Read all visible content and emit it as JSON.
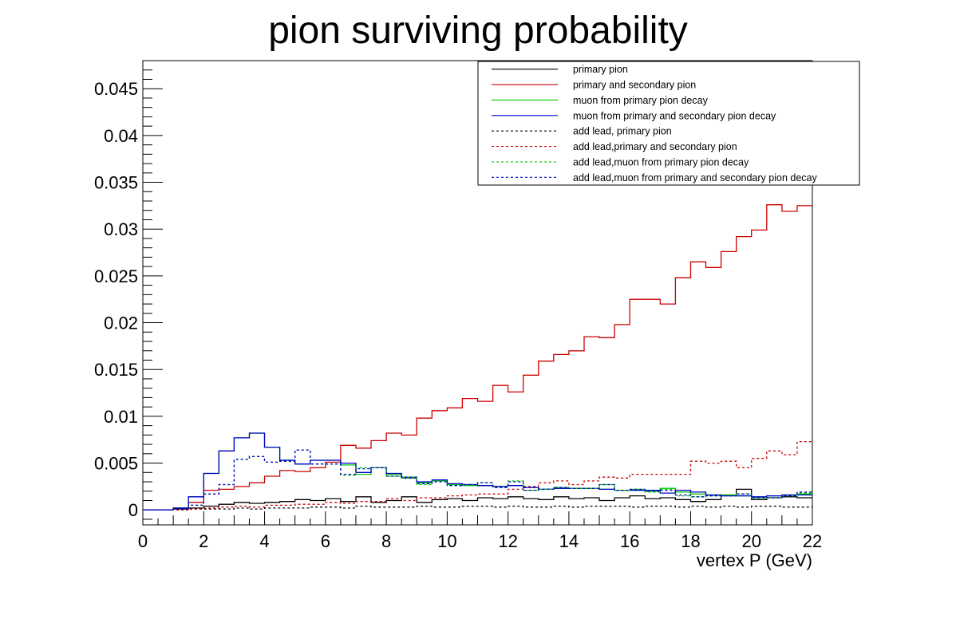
{
  "chart_data": {
    "type": "line",
    "title": "pion surviving probability",
    "xlabel": "vertex P (GeV)",
    "ylabel": "",
    "xlim": [
      0,
      22
    ],
    "ylim": [
      -0.0016,
      0.048
    ],
    "xticks": [
      "0",
      "2",
      "4",
      "6",
      "8",
      "10",
      "12",
      "14",
      "16",
      "18",
      "20",
      "22"
    ],
    "yticks": [
      "0",
      "0.005",
      "0.01",
      "0.015",
      "0.02",
      "0.025",
      "0.03",
      "0.035",
      "0.04",
      "0.045"
    ],
    "bin_edges": [
      0,
      0.5,
      1,
      1.5,
      2,
      2.5,
      3,
      3.5,
      4,
      4.5,
      5,
      5.5,
      6,
      6.5,
      7,
      7.5,
      8,
      8.5,
      9,
      9.5,
      10,
      10.5,
      11,
      11.5,
      12,
      12.5,
      13,
      13.5,
      14,
      14.5,
      15,
      15.5,
      16,
      16.5,
      17,
      17.5,
      18,
      18.5,
      19,
      19.5,
      20,
      20.5,
      21,
      21.5,
      22
    ],
    "grid": false,
    "legend_position": "top-right",
    "series": [
      {
        "name": "primary pion",
        "color": "#000000",
        "style": "solid",
        "values": [
          0,
          0,
          0.0001,
          0.0002,
          0.0004,
          0.0006,
          0.0008,
          0.0007,
          0.0008,
          0.0009,
          0.0011,
          0.001,
          0.0012,
          0.0009,
          0.0014,
          0.0008,
          0.001,
          0.0014,
          0.0008,
          0.0011,
          0.0012,
          0.001,
          0.0013,
          0.0012,
          0.0014,
          0.0012,
          0.0011,
          0.0014,
          0.0012,
          0.0013,
          0.001,
          0.0013,
          0.0015,
          0.0012,
          0.0013,
          0.0011,
          0.0009,
          0.0011,
          0.0016,
          0.0022,
          0.0011,
          0.0013,
          0.0014,
          0.0013
        ]
      },
      {
        "name": "primary and secondary pion",
        "color": "#cc0000",
        "style": "solid",
        "values": [
          0,
          0,
          0.0002,
          0.0008,
          0.0021,
          0.0022,
          0.0025,
          0.0029,
          0.0036,
          0.0042,
          0.0041,
          0.0045,
          0.0051,
          0.0069,
          0.0066,
          0.0074,
          0.0082,
          0.008,
          0.0098,
          0.0106,
          0.0109,
          0.0119,
          0.0116,
          0.0133,
          0.0126,
          0.0144,
          0.0159,
          0.0166,
          0.017,
          0.0185,
          0.0184,
          0.0198,
          0.0225,
          0.0225,
          0.022,
          0.0248,
          0.0265,
          0.0259,
          0.0276,
          0.0292,
          0.0299,
          0.0326,
          0.0319,
          0.0325
        ]
      },
      {
        "name": "muon from primary pion decay",
        "color": "#00cc00",
        "style": "solid",
        "values": [
          0,
          0,
          0.0002,
          0.0014,
          0.0039,
          0.0063,
          0.0077,
          0.0082,
          0.0067,
          0.0053,
          0.0049,
          0.0053,
          0.0053,
          0.0048,
          0.0038,
          0.0045,
          0.0038,
          0.0034,
          0.0029,
          0.0031,
          0.0027,
          0.0026,
          0.0026,
          0.0025,
          0.0026,
          0.0024,
          0.0022,
          0.0023,
          0.0023,
          0.0023,
          0.0022,
          0.0021,
          0.0021,
          0.002,
          0.0023,
          0.0019,
          0.0017,
          0.0016,
          0.0016,
          0.0015,
          0.0013,
          0.0015,
          0.0016,
          0.0017
        ]
      },
      {
        "name": "muon from primary and secondary pion decay",
        "color": "#0000cc",
        "style": "solid",
        "values": [
          0,
          0,
          0.0002,
          0.0014,
          0.0039,
          0.0063,
          0.0077,
          0.0082,
          0.0067,
          0.0053,
          0.0049,
          0.0053,
          0.0053,
          0.005,
          0.004,
          0.0045,
          0.0039,
          0.0035,
          0.003,
          0.0032,
          0.0028,
          0.0027,
          0.0026,
          0.0025,
          0.0026,
          0.0024,
          0.0022,
          0.0023,
          0.0023,
          0.0023,
          0.0022,
          0.0021,
          0.0021,
          0.0021,
          0.0018,
          0.0021,
          0.0019,
          0.0016,
          0.0015,
          0.0015,
          0.0014,
          0.0015,
          0.0016,
          0.0016
        ]
      },
      {
        "name": "add lead, primary pion",
        "color": "#000000",
        "style": "dashed",
        "values": [
          0,
          0,
          0,
          0.0001,
          0.0001,
          0.0001,
          0.0002,
          0.0001,
          0.0002,
          0.0002,
          0.0002,
          0.0003,
          0.0003,
          0.0002,
          0.0004,
          0.0003,
          0.0003,
          0.0003,
          0.0004,
          0.0003,
          0.0003,
          0.0004,
          0.0004,
          0.0003,
          0.0004,
          0.0003,
          0.0003,
          0.0004,
          0.0003,
          0.0004,
          0.0004,
          0.0004,
          0.0003,
          0.0004,
          0.0004,
          0.0003,
          0.0004,
          0.0003,
          0.0004,
          0.0003,
          0.0004,
          0.0004,
          0.0003,
          0.0003
        ]
      },
      {
        "name": "add lead,primary and secondary pion",
        "color": "#cc0000",
        "style": "dashed",
        "values": [
          0,
          0,
          0,
          0.0001,
          0.0002,
          0.0003,
          0.0004,
          0.0003,
          0.0005,
          0.0005,
          0.0006,
          0.0006,
          0.0008,
          0.0007,
          0.0009,
          0.0009,
          0.0012,
          0.001,
          0.0013,
          0.0013,
          0.0015,
          0.0016,
          0.0017,
          0.0017,
          0.0022,
          0.0025,
          0.0029,
          0.0031,
          0.0027,
          0.0031,
          0.0035,
          0.0034,
          0.0038,
          0.0038,
          0.0038,
          0.0038,
          0.0052,
          0.005,
          0.0052,
          0.0045,
          0.0055,
          0.0063,
          0.0059,
          0.0073
        ]
      },
      {
        "name": "add lead,muon from primary pion decay",
        "color": "#00cc00",
        "style": "dashed",
        "values": [
          0,
          0,
          0.0001,
          0.0005,
          0.0017,
          0.0027,
          0.0054,
          0.0057,
          0.0051,
          0.0052,
          0.0064,
          0.0049,
          0.0049,
          0.0037,
          0.0045,
          0.0045,
          0.0036,
          0.0035,
          0.0027,
          0.0031,
          0.0026,
          0.0027,
          0.0029,
          0.0024,
          0.0031,
          0.0021,
          0.0022,
          0.0024,
          0.0023,
          0.0023,
          0.0027,
          0.0021,
          0.0022,
          0.0019,
          0.0022,
          0.0015,
          0.0014,
          0.0015,
          0.0016,
          0.0017,
          0.0013,
          0.0013,
          0.0015,
          0.0018
        ]
      },
      {
        "name": "add lead,muon from primary and secondary pion decay",
        "color": "#0000cc",
        "style": "dashed",
        "values": [
          0,
          0,
          0.0001,
          0.0005,
          0.0017,
          0.0027,
          0.0054,
          0.0057,
          0.0051,
          0.0052,
          0.0064,
          0.0049,
          0.0049,
          0.0038,
          0.0044,
          0.0045,
          0.0036,
          0.0034,
          0.0028,
          0.003,
          0.0026,
          0.0027,
          0.0029,
          0.0024,
          0.003,
          0.0021,
          0.0022,
          0.0024,
          0.0023,
          0.0023,
          0.0027,
          0.0021,
          0.0022,
          0.002,
          0.0021,
          0.0016,
          0.0014,
          0.0015,
          0.0015,
          0.0017,
          0.0013,
          0.0013,
          0.0015,
          0.0019
        ]
      }
    ]
  }
}
